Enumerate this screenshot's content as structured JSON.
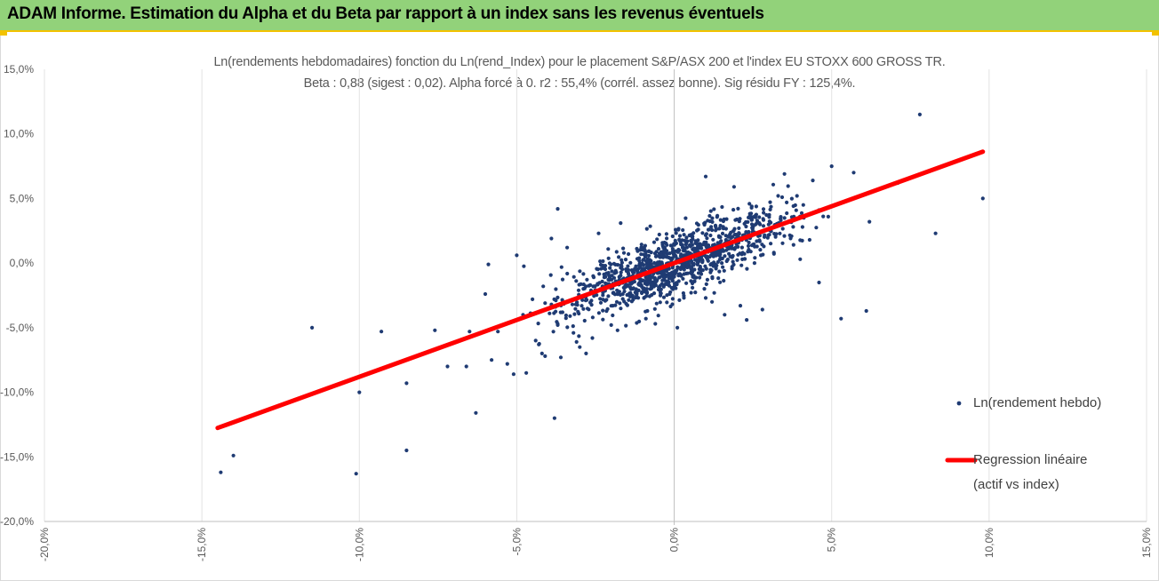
{
  "banner": {
    "title": "ADAM Informe. Estimation du Alpha et du Beta par rapport à un index sans les revenus éventuels"
  },
  "chart_data": {
    "type": "scatter",
    "title": "Ln(rendements hebdomadaires) fonction du Ln(rend_Index) pour le placement S&P/ASX 200 et l'index EU STOXX 600 GROSS TR.",
    "subtitle": "Beta : 0,88 (sigest : 0,02). Alpha forcé à 0. r2 : 55,4% (corrél. assez bonne). Sig résidu FY : 125,4%.",
    "xlabel": "",
    "ylabel": "",
    "xlim": [
      -0.2,
      0.15
    ],
    "ylim": [
      -0.2,
      0.15
    ],
    "x_ticks": [
      -0.2,
      -0.15,
      -0.1,
      -0.05,
      0.0,
      0.05,
      0.1,
      0.15
    ],
    "x_tick_labels": [
      "-20,0%",
      "-15,0%",
      "-10,0%",
      "-5,0%",
      "0,0%",
      "5,0%",
      "10,0%",
      "15,0%"
    ],
    "y_ticks": [
      0.15,
      0.1,
      0.05,
      0.0,
      -0.05,
      -0.1,
      -0.15,
      -0.2
    ],
    "y_tick_labels": [
      "15,0%",
      "10,0%",
      "5,0%",
      "0,0%",
      "-5,0%",
      "-10,0%",
      "-15,0%",
      "-20,0%"
    ],
    "grid": "vertical",
    "legend_position": "right",
    "beta": 0.88,
    "series": [
      {
        "name": "Ln(rendement hebdo)",
        "kind": "scatter",
        "color": "#1f3b73",
        "cluster": {
          "count": 1180,
          "sd_x": 0.0165,
          "beta": 0.88,
          "sd_resid": 0.0125
        },
        "points": [
          [
            0.078,
            0.115
          ],
          [
            0.098,
            0.05
          ],
          [
            0.083,
            0.023
          ],
          [
            0.062,
            0.032
          ],
          [
            0.071,
            0.062
          ],
          [
            0.061,
            -0.037
          ],
          [
            0.053,
            -0.043
          ],
          [
            0.046,
            -0.015
          ],
          [
            0.057,
            0.07
          ],
          [
            0.05,
            0.075
          ],
          [
            -0.144,
            -0.162
          ],
          [
            -0.14,
            -0.149
          ],
          [
            -0.115,
            -0.05
          ],
          [
            -0.093,
            -0.053
          ],
          [
            -0.1,
            -0.1
          ],
          [
            -0.101,
            -0.163
          ],
          [
            -0.085,
            -0.093
          ],
          [
            -0.085,
            -0.145
          ],
          [
            -0.076,
            -0.052
          ],
          [
            -0.072,
            -0.08
          ],
          [
            -0.066,
            -0.08
          ],
          [
            -0.065,
            -0.053
          ],
          [
            -0.063,
            -0.116
          ],
          [
            -0.06,
            -0.024
          ],
          [
            -0.059,
            -0.001
          ],
          [
            -0.058,
            -0.075
          ],
          [
            -0.056,
            -0.053
          ],
          [
            -0.053,
            -0.078
          ],
          [
            -0.051,
            -0.086
          ],
          [
            -0.05,
            0.006
          ],
          [
            -0.048,
            -0.04
          ],
          [
            -0.047,
            -0.085
          ],
          [
            -0.045,
            -0.028
          ],
          [
            -0.043,
            -0.063
          ],
          [
            -0.042,
            -0.07
          ],
          [
            -0.041,
            -0.031
          ],
          [
            -0.039,
            -0.032
          ],
          [
            -0.038,
            -0.12
          ],
          [
            -0.037,
            -0.048
          ],
          [
            -0.037,
            0.042
          ],
          [
            -0.036,
            -0.073
          ],
          [
            -0.039,
            0.019
          ],
          [
            -0.034,
            0.012
          ],
          [
            -0.044,
            -0.06
          ],
          [
            -0.041,
            -0.072
          ],
          [
            -0.03,
            -0.065
          ],
          [
            -0.028,
            -0.07
          ],
          [
            -0.024,
            0.023
          ],
          [
            -0.017,
            0.031
          ],
          [
            0.01,
            0.067
          ],
          [
            0.019,
            0.059
          ],
          [
            0.035,
            0.069
          ],
          [
            0.033,
            0.052
          ],
          [
            0.043,
            0.018
          ],
          [
            0.04,
            0.003
          ],
          [
            0.028,
            -0.036
          ],
          [
            0.021,
            -0.033
          ],
          [
            0.023,
            -0.044
          ],
          [
            0.016,
            -0.04
          ],
          [
            0.012,
            -0.03
          ],
          [
            0.01,
            -0.027
          ],
          [
            0.039,
            0.052
          ],
          [
            0.046,
            0.041
          ],
          [
            0.038,
            0.036
          ],
          [
            0.041,
            0.045
          ],
          [
            0.044,
            0.064
          ],
          [
            0.001,
            -0.05
          ],
          [
            -0.006,
            -0.047
          ],
          [
            -0.009,
            -0.043
          ],
          [
            -0.018,
            -0.052
          ],
          [
            -0.02,
            -0.048
          ],
          [
            -0.026,
            -0.058
          ],
          [
            -0.032,
            -0.054
          ]
        ]
      },
      {
        "name": "Regression linéaire (actif vs index)",
        "kind": "line",
        "color": "#ff0000",
        "x": [
          -0.145,
          0.098
        ],
        "y": [
          -0.1276,
          0.0862
        ]
      }
    ]
  },
  "legend": {
    "scatter_label": "Ln(rendement hebdo)",
    "line_label_1": "Regression linéaire",
    "line_label_2": "(actif vs index)"
  }
}
